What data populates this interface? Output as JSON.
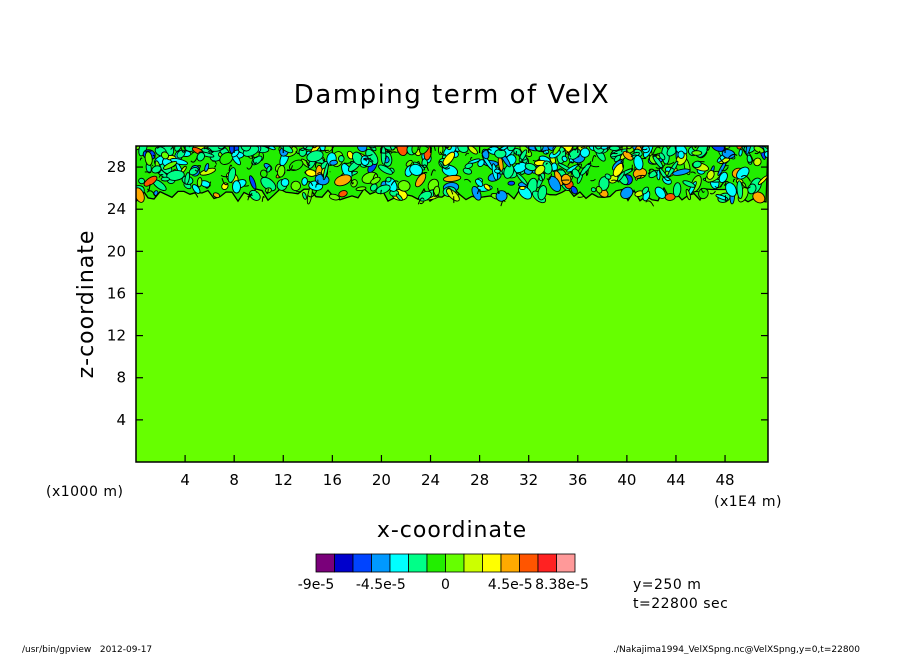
{
  "chart_data": {
    "type": "heatmap",
    "title": "Damping term of VelX",
    "xlabel": "x-coordinate",
    "ylabel": "z-coordinate",
    "x_unit": "(x1E4 m)",
    "y_unit": "(x1000 m)",
    "xlim": [
      0,
      51.5
    ],
    "ylim": [
      0,
      30
    ],
    "x_ticks": [
      "4",
      "8",
      "12",
      "16",
      "20",
      "24",
      "28",
      "32",
      "36",
      "40",
      "44",
      "48"
    ],
    "y_ticks": [
      "4",
      "8",
      "12",
      "16",
      "20",
      "24",
      "28"
    ],
    "field": {
      "background_value": 0,
      "background_color": "#66ff00",
      "damping_layer_bottom_z": 24.5,
      "domain_top_z": 30
    },
    "colorbar": {
      "colors": [
        "#7a007a",
        "#0000cc",
        "#0044ff",
        "#0099ff",
        "#00ffff",
        "#00ff88",
        "#22ee00",
        "#66ff00",
        "#ccff00",
        "#ffff00",
        "#ffaa00",
        "#ff5500",
        "#ff2222",
        "#ff9999"
      ],
      "labels": [
        "-9e-5",
        "-4.5e-5",
        "0",
        "4.5e-5",
        "8.38e-5"
      ],
      "label_positions": [
        0,
        3.5,
        7,
        10.5,
        13.3
      ]
    },
    "annotations": [
      "y=250 m",
      "t=22800 sec"
    ]
  },
  "footer": {
    "left": "/usr/bin/gpview   2012-09-17",
    "right": "./Nakajima1994_VelXSpng.nc@VelXSpng,y=0,t=22800"
  }
}
